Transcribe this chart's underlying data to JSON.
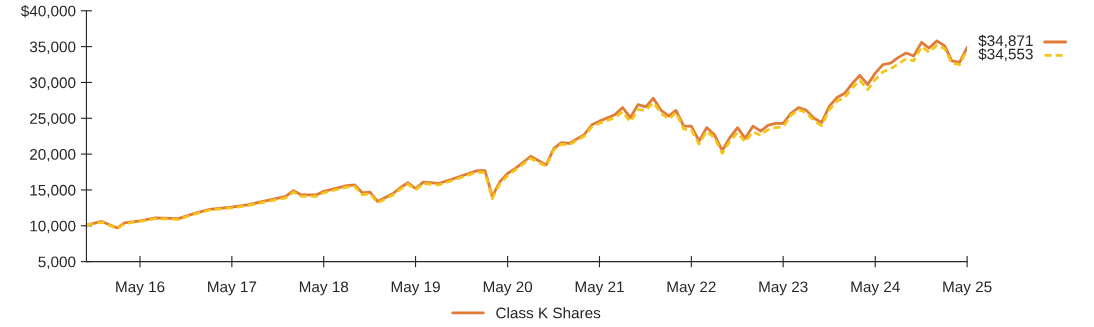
{
  "chart_data": {
    "type": "line",
    "x": [
      "2015-10",
      "2015-12",
      "2016-02",
      "2016-03",
      "2016-05",
      "2016-07",
      "2016-10",
      "2016-12",
      "2017-02",
      "2017-05",
      "2017-07",
      "2017-12",
      "2018-01",
      "2018-02",
      "2018-04",
      "2018-05",
      "2018-08",
      "2018-09",
      "2018-10",
      "2018-11",
      "2018-12",
      "2019-02",
      "2019-03",
      "2019-04",
      "2019-05",
      "2019-06",
      "2019-08",
      "2019-10",
      "2020-01",
      "2020-02",
      "2020-03",
      "2020-04",
      "2020-05",
      "2020-06",
      "2020-08",
      "2020-10",
      "2020-11",
      "2020-12",
      "2021-01",
      "2021-03",
      "2021-04",
      "2021-05",
      "2021-07",
      "2021-08",
      "2021-09",
      "2021-10",
      "2021-11",
      "2021-12",
      "2022-01",
      "2022-02",
      "2022-03",
      "2022-04",
      "2022-05",
      "2022-06",
      "2022-07",
      "2022-08",
      "2022-09",
      "2022-10",
      "2022-11",
      "2022-12",
      "2023-01",
      "2023-02",
      "2023-03",
      "2023-04",
      "2023-05",
      "2023-06",
      "2023-07",
      "2023-08",
      "2023-09",
      "2023-10",
      "2023-11",
      "2023-12",
      "2024-01",
      "2024-02",
      "2024-03",
      "2024-04",
      "2024-05",
      "2024-06",
      "2024-07",
      "2024-08",
      "2024-09",
      "2024-10",
      "2024-11",
      "2024-12",
      "2025-01",
      "2025-02",
      "2025-03",
      "2025-04",
      "2025-05"
    ],
    "series": [
      {
        "name": "Class K Shares",
        "color": "#e07b39",
        "line_style": "solid",
        "values": [
          10100,
          10600,
          9700,
          10400,
          10700,
          11100,
          11000,
          11700,
          12300,
          12600,
          12900,
          14100,
          14900,
          14300,
          14300,
          14800,
          15600,
          15700,
          14600,
          14700,
          13400,
          14500,
          15300,
          16000,
          15200,
          16100,
          15900,
          16600,
          17700,
          17700,
          14100,
          16200,
          17300,
          18000,
          19700,
          18500,
          20800,
          21600,
          21500,
          22700,
          24100,
          24600,
          25500,
          26500,
          25100,
          26900,
          26600,
          27800,
          26100,
          25300,
          26100,
          23900,
          23900,
          21800,
          23700,
          22700,
          20500,
          22300,
          23700,
          22200,
          23900,
          23200,
          24000,
          24300,
          24300,
          25700,
          26500,
          26100,
          25000,
          24400,
          26700,
          27900,
          28500,
          29900,
          31000,
          29700,
          31300,
          32500,
          32700,
          33500,
          34100,
          33700,
          35600,
          34800,
          35800,
          35100,
          33000,
          32800,
          34871
        ]
      },
      {
        "color": "#f5c518",
        "line_style": "dashed",
        "values": [
          10100,
          10500,
          9600,
          10300,
          10600,
          11000,
          10900,
          11600,
          12200,
          12500,
          12800,
          13900,
          14700,
          14100,
          14100,
          14600,
          15400,
          15500,
          14300,
          14500,
          13200,
          14300,
          15100,
          15800,
          15000,
          15900,
          15700,
          16400,
          17500,
          17400,
          13800,
          15900,
          17000,
          17800,
          19400,
          18300,
          20600,
          21400,
          21300,
          22500,
          23800,
          24300,
          25100,
          25900,
          24500,
          26200,
          26100,
          27200,
          25700,
          24900,
          25800,
          23500,
          23400,
          21400,
          23200,
          22300,
          20100,
          21800,
          23000,
          21700,
          23100,
          22600,
          23400,
          23700,
          23800,
          25400,
          26200,
          25800,
          24600,
          24000,
          26200,
          27400,
          27900,
          29300,
          30300,
          29000,
          30400,
          31500,
          31900,
          32600,
          33300,
          33000,
          35000,
          34200,
          35200,
          34700,
          32700,
          32500,
          34553
        ]
      }
    ],
    "annotations": [
      {
        "text": "$34,871",
        "x": "2025-05",
        "y": 34871
      },
      {
        "text": "$34,553",
        "x": "2025-05",
        "y": 34553
      }
    ],
    "xlim": [
      "2015-10",
      "2025-05"
    ],
    "xticks": [
      {
        "value": "2016-05",
        "label": "May 16"
      },
      {
        "value": "2017-05",
        "label": "May 17"
      },
      {
        "value": "2018-05",
        "label": "May 18"
      },
      {
        "value": "2019-05",
        "label": "May 19"
      },
      {
        "value": "2020-05",
        "label": "May 20"
      },
      {
        "value": "2021-05",
        "label": "May 21"
      },
      {
        "value": "2022-05",
        "label": "May 22"
      },
      {
        "value": "2023-05",
        "label": "May 23"
      },
      {
        "value": "2024-05",
        "label": "May 24"
      },
      {
        "value": "2025-05",
        "label": "May 25"
      }
    ],
    "ylim": [
      5000,
      40000
    ],
    "yticks": [
      {
        "value": 5000,
        "label": "5,000"
      },
      {
        "value": 10000,
        "label": "10,000"
      },
      {
        "value": 15000,
        "label": "15,000"
      },
      {
        "value": 20000,
        "label": "20,000"
      },
      {
        "value": 25000,
        "label": "25,000"
      },
      {
        "value": 30000,
        "label": "30,000"
      },
      {
        "value": 35000,
        "label": "35,000"
      },
      {
        "value": 40000,
        "label": "$40,000"
      }
    ],
    "grid": false,
    "legend": "bottom",
    "marker": "none"
  }
}
